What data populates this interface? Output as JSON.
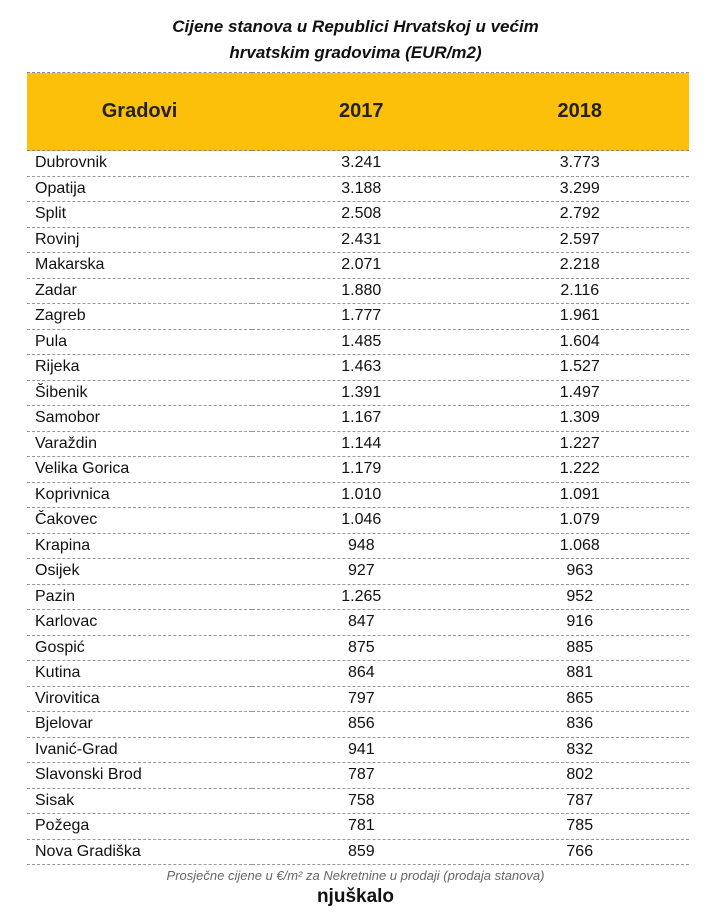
{
  "title_line1": "Cijene stanova u Republici Hrvatskoj u većim",
  "title_line2": "hrvatskim gradovima (EUR/m2)",
  "footnote": "Prosječne cijene u €/m² za Nekretnine u prodaji (prodaja stanova)",
  "logo": "njuškalo",
  "accent_color": "#fcc00a",
  "chart_data": {
    "type": "table",
    "title": "Cijene stanova u Republici Hrvatskoj u većim hrvatskim gradovima (EUR/m2)",
    "columns": [
      "Gradovi",
      "2017",
      "2018"
    ],
    "rows": [
      [
        "Dubrovnik",
        "3.241",
        "3.773"
      ],
      [
        "Opatija",
        "3.188",
        "3.299"
      ],
      [
        "Split",
        "2.508",
        "2.792"
      ],
      [
        "Rovinj",
        "2.431",
        "2.597"
      ],
      [
        "Makarska",
        "2.071",
        "2.218"
      ],
      [
        "Zadar",
        "1.880",
        "2.116"
      ],
      [
        "Zagreb",
        "1.777",
        "1.961"
      ],
      [
        "Pula",
        "1.485",
        "1.604"
      ],
      [
        "Rijeka",
        "1.463",
        "1.527"
      ],
      [
        "Šibenik",
        "1.391",
        "1.497"
      ],
      [
        "Samobor",
        "1.167",
        "1.309"
      ],
      [
        "Varaždin",
        "1.144",
        "1.227"
      ],
      [
        "Velika Gorica",
        "1.179",
        "1.222"
      ],
      [
        "Koprivnica",
        "1.010",
        "1.091"
      ],
      [
        "Čakovec",
        "1.046",
        "1.079"
      ],
      [
        "Krapina",
        "948",
        "1.068"
      ],
      [
        "Osijek",
        "927",
        "963"
      ],
      [
        "Pazin",
        "1.265",
        "952"
      ],
      [
        "Karlovac",
        "847",
        "916"
      ],
      [
        "Gospić",
        "875",
        "885"
      ],
      [
        "Kutina",
        "864",
        "881"
      ],
      [
        "Virovitica",
        "797",
        "865"
      ],
      [
        "Bjelovar",
        "856",
        "836"
      ],
      [
        "Ivanić-Grad",
        "941",
        "832"
      ],
      [
        "Slavonski Brod",
        "787",
        "802"
      ],
      [
        "Sisak",
        "758",
        "787"
      ],
      [
        "Požega",
        "781",
        "785"
      ],
      [
        "Nova Gradiška",
        "859",
        "766"
      ]
    ]
  }
}
